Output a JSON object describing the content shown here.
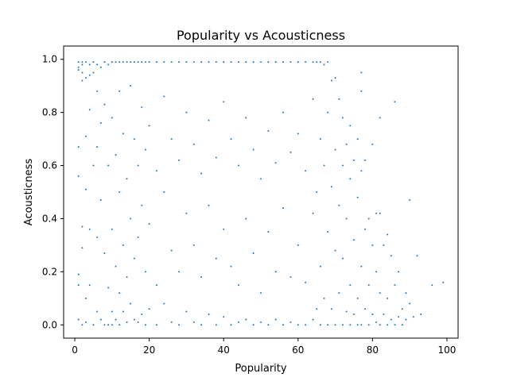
{
  "chart_data": {
    "type": "scatter",
    "title": "Popularity vs Acousticness",
    "xlabel": "Popularity",
    "ylabel": "Acousticness",
    "xlim": [
      -3,
      103
    ],
    "ylim": [
      -0.05,
      1.05
    ],
    "xticks": [
      0,
      20,
      40,
      60,
      80,
      100
    ],
    "yticks": [
      0.0,
      0.2,
      0.4,
      0.6,
      0.8,
      1.0
    ],
    "xtick_labels": [
      "0",
      "20",
      "40",
      "60",
      "80",
      "100"
    ],
    "ytick_labels": [
      "0.0",
      "0.2",
      "0.4",
      "0.6",
      "0.8",
      "1.0"
    ],
    "grid": false,
    "marker_color": "#1f77b4",
    "points": [
      [
        1,
        0.99
      ],
      [
        1,
        0.97
      ],
      [
        1,
        0.96
      ],
      [
        1,
        0.67
      ],
      [
        1,
        0.56
      ],
      [
        1,
        0.19
      ],
      [
        1,
        0.15
      ],
      [
        1,
        0.02
      ],
      [
        2,
        0.99
      ],
      [
        2,
        0.98
      ],
      [
        2,
        0.95
      ],
      [
        2,
        0.92
      ],
      [
        2,
        0.37
      ],
      [
        2,
        0.29
      ],
      [
        2,
        0.0
      ],
      [
        3,
        0.99
      ],
      [
        3,
        0.93
      ],
      [
        3,
        0.71
      ],
      [
        3,
        0.51
      ],
      [
        3,
        0.1
      ],
      [
        3,
        0.01
      ],
      [
        4,
        0.98
      ],
      [
        4,
        0.94
      ],
      [
        4,
        0.81
      ],
      [
        4,
        0.36
      ],
      [
        4,
        0.15
      ],
      [
        5,
        0.99
      ],
      [
        5,
        0.95
      ],
      [
        5,
        0.6
      ],
      [
        5,
        0.0
      ],
      [
        6,
        0.98
      ],
      [
        6,
        0.88
      ],
      [
        6,
        0.67
      ],
      [
        6,
        0.33
      ],
      [
        6,
        0.05
      ],
      [
        7,
        0.97
      ],
      [
        7,
        0.76
      ],
      [
        7,
        0.47
      ],
      [
        7,
        0.02
      ],
      [
        8,
        0.99
      ],
      [
        8,
        0.83
      ],
      [
        8,
        0.27
      ],
      [
        8,
        0.0
      ],
      [
        9,
        0.98
      ],
      [
        9,
        0.6
      ],
      [
        9,
        0.14
      ],
      [
        9,
        0.0
      ],
      [
        10,
        0.99
      ],
      [
        10,
        0.78
      ],
      [
        10,
        0.36
      ],
      [
        10,
        0.05
      ],
      [
        10,
        0.0
      ],
      [
        11,
        0.99
      ],
      [
        11,
        0.64
      ],
      [
        11,
        0.22
      ],
      [
        11,
        0.02
      ],
      [
        12,
        0.99
      ],
      [
        12,
        0.88
      ],
      [
        12,
        0.5
      ],
      [
        12,
        0.12
      ],
      [
        12,
        0.0
      ],
      [
        13,
        0.99
      ],
      [
        13,
        0.72
      ],
      [
        13,
        0.3
      ],
      [
        13,
        0.05
      ],
      [
        14,
        0.99
      ],
      [
        14,
        0.55
      ],
      [
        14,
        0.18
      ],
      [
        14,
        0.01
      ],
      [
        15,
        0.99
      ],
      [
        15,
        0.9
      ],
      [
        15,
        0.4
      ],
      [
        15,
        0.08
      ],
      [
        16,
        0.99
      ],
      [
        16,
        0.7
      ],
      [
        16,
        0.25
      ],
      [
        16,
        0.02
      ],
      [
        17,
        0.99
      ],
      [
        17,
        0.6
      ],
      [
        17,
        0.33
      ],
      [
        17,
        0.01
      ],
      [
        18,
        0.99
      ],
      [
        18,
        0.82
      ],
      [
        18,
        0.45
      ],
      [
        18,
        0.04
      ],
      [
        19,
        0.99
      ],
      [
        19,
        0.66
      ],
      [
        19,
        0.2
      ],
      [
        19,
        0.0
      ],
      [
        20,
        0.99
      ],
      [
        20,
        0.75
      ],
      [
        20,
        0.38
      ],
      [
        20,
        0.06
      ],
      [
        22,
        0.99
      ],
      [
        22,
        0.58
      ],
      [
        22,
        0.15
      ],
      [
        22,
        0.0
      ],
      [
        24,
        0.99
      ],
      [
        24,
        0.86
      ],
      [
        24,
        0.5
      ],
      [
        24,
        0.08
      ],
      [
        26,
        0.99
      ],
      [
        26,
        0.7
      ],
      [
        26,
        0.28
      ],
      [
        26,
        0.01
      ],
      [
        28,
        0.99
      ],
      [
        28,
        0.62
      ],
      [
        28,
        0.2
      ],
      [
        28,
        0.0
      ],
      [
        30,
        0.99
      ],
      [
        30,
        0.8
      ],
      [
        30,
        0.42
      ],
      [
        30,
        0.05
      ],
      [
        32,
        0.99
      ],
      [
        32,
        0.68
      ],
      [
        32,
        0.3
      ],
      [
        32,
        0.01
      ],
      [
        34,
        0.99
      ],
      [
        34,
        0.57
      ],
      [
        34,
        0.18
      ],
      [
        34,
        0.0
      ],
      [
        36,
        0.99
      ],
      [
        36,
        0.77
      ],
      [
        36,
        0.45
      ],
      [
        36,
        0.04
      ],
      [
        38,
        0.99
      ],
      [
        38,
        0.63
      ],
      [
        38,
        0.25
      ],
      [
        38,
        0.0
      ],
      [
        40,
        0.99
      ],
      [
        40,
        0.84
      ],
      [
        40,
        0.36
      ],
      [
        40,
        0.03
      ],
      [
        42,
        0.99
      ],
      [
        42,
        0.7
      ],
      [
        42,
        0.22
      ],
      [
        42,
        0.0
      ],
      [
        44,
        0.99
      ],
      [
        44,
        0.6
      ],
      [
        44,
        0.15
      ],
      [
        44,
        0.01
      ],
      [
        46,
        0.99
      ],
      [
        46,
        0.78
      ],
      [
        46,
        0.4
      ],
      [
        46,
        0.02
      ],
      [
        48,
        0.99
      ],
      [
        48,
        0.66
      ],
      [
        48,
        0.27
      ],
      [
        48,
        0.0
      ],
      [
        50,
        0.99
      ],
      [
        50,
        0.55
      ],
      [
        50,
        0.12
      ],
      [
        50,
        0.01
      ],
      [
        52,
        0.99
      ],
      [
        52,
        0.73
      ],
      [
        52,
        0.35
      ],
      [
        52,
        0.0
      ],
      [
        54,
        0.99
      ],
      [
        54,
        0.61
      ],
      [
        54,
        0.2
      ],
      [
        54,
        0.02
      ],
      [
        56,
        0.99
      ],
      [
        56,
        0.8
      ],
      [
        56,
        0.44
      ],
      [
        56,
        0.0
      ],
      [
        58,
        0.99
      ],
      [
        58,
        0.65
      ],
      [
        58,
        0.18
      ],
      [
        58,
        0.01
      ],
      [
        60,
        0.99
      ],
      [
        60,
        0.72
      ],
      [
        60,
        0.3
      ],
      [
        60,
        0.0
      ],
      [
        62,
        0.99
      ],
      [
        62,
        0.58
      ],
      [
        62,
        0.16
      ],
      [
        62,
        0.0
      ],
      [
        64,
        0.99
      ],
      [
        64,
        0.85
      ],
      [
        64,
        0.42
      ],
      [
        64,
        0.02
      ],
      [
        65,
        0.99
      ],
      [
        65,
        0.5
      ],
      [
        65,
        0.06
      ],
      [
        66,
        0.99
      ],
      [
        66,
        0.7
      ],
      [
        66,
        0.22
      ],
      [
        66,
        0.0
      ],
      [
        67,
        0.98
      ],
      [
        67,
        0.6
      ],
      [
        67,
        0.1
      ],
      [
        68,
        0.99
      ],
      [
        68,
        0.8
      ],
      [
        68,
        0.35
      ],
      [
        68,
        0.0
      ],
      [
        69,
        0.92
      ],
      [
        69,
        0.52
      ],
      [
        69,
        0.06
      ],
      [
        70,
        0.93
      ],
      [
        70,
        0.66
      ],
      [
        70,
        0.28
      ],
      [
        70,
        0.0
      ],
      [
        71,
        0.85
      ],
      [
        71,
        0.45
      ],
      [
        71,
        0.12
      ],
      [
        72,
        0.78
      ],
      [
        72,
        0.6
      ],
      [
        72,
        0.25
      ],
      [
        72,
        0.0
      ],
      [
        73,
        0.68
      ],
      [
        73,
        0.4
      ],
      [
        73,
        0.05
      ],
      [
        74,
        0.75
      ],
      [
        74,
        0.55
      ],
      [
        74,
        0.15
      ],
      [
        74,
        0.0
      ],
      [
        75,
        0.62
      ],
      [
        75,
        0.32
      ],
      [
        75,
        0.04
      ],
      [
        76,
        0.7
      ],
      [
        76,
        0.48
      ],
      [
        76,
        0.1
      ],
      [
        76,
        0.0
      ],
      [
        77,
        0.95
      ],
      [
        77,
        0.88
      ],
      [
        77,
        0.58
      ],
      [
        77,
        0.22
      ],
      [
        77,
        0.0
      ],
      [
        78,
        0.62
      ],
      [
        78,
        0.36
      ],
      [
        78,
        0.06
      ],
      [
        79,
        0.4
      ],
      [
        79,
        0.15
      ],
      [
        79,
        0.0
      ],
      [
        80,
        0.68
      ],
      [
        80,
        0.3
      ],
      [
        80,
        0.04
      ],
      [
        81,
        0.42
      ],
      [
        81,
        0.2
      ],
      [
        81,
        0.01
      ],
      [
        82,
        0.78
      ],
      [
        82,
        0.42
      ],
      [
        82,
        0.12
      ],
      [
        82,
        0.0
      ],
      [
        83,
        0.3
      ],
      [
        83,
        0.04
      ],
      [
        84,
        0.34
      ],
      [
        84,
        0.1
      ],
      [
        84,
        0.0
      ],
      [
        85,
        0.26
      ],
      [
        85,
        0.02
      ],
      [
        86,
        0.84
      ],
      [
        86,
        0.15
      ],
      [
        86,
        0.0
      ],
      [
        87,
        0.2
      ],
      [
        87,
        0.03
      ],
      [
        88,
        0.06
      ],
      [
        88,
        0.0
      ],
      [
        89,
        0.12
      ],
      [
        89,
        0.02
      ],
      [
        90,
        0.47
      ],
      [
        90,
        0.08
      ],
      [
        91,
        0.03
      ],
      [
        92,
        0.26
      ],
      [
        93,
        0.04
      ],
      [
        96,
        0.15
      ],
      [
        99,
        0.16
      ]
    ]
  }
}
